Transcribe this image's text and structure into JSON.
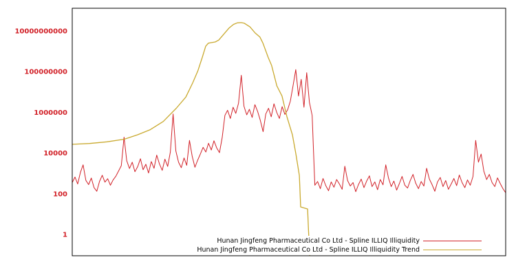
{
  "chart_data": {
    "type": "line",
    "title": "",
    "grid": false,
    "background": "#ffffff",
    "plot_border_color": "#000000",
    "x_axis": {
      "tick_labels_visible": false
    },
    "y_axis": {
      "scale": "log10",
      "tick_values": [
        1,
        100,
        10000,
        1000000,
        100000000,
        10000000000
      ],
      "tick_labels": [
        "1",
        "100",
        "10000",
        "1000000",
        "100000000",
        "10000000000"
      ],
      "tick_color": "#d11f26",
      "range_log10": [
        -1.05,
        11.12
      ]
    },
    "legend": {
      "position": "bottom-center"
    },
    "series": [
      {
        "name": "Hunan Jingfeng Pharmaceutical Co Ltd - Spline ILLIQ Illiquidity",
        "color": "#d11f26",
        "sampling": "uniform_x_0_to_1",
        "values_log10": [
          2.55,
          2.82,
          2.48,
          3.05,
          3.42,
          2.66,
          2.45,
          2.77,
          2.3,
          2.12,
          2.6,
          2.91,
          2.57,
          2.74,
          2.42,
          2.68,
          2.86,
          3.12,
          3.38,
          4.78,
          3.62,
          3.24,
          3.55,
          3.08,
          3.33,
          3.72,
          3.18,
          3.45,
          3.02,
          3.58,
          3.25,
          3.9,
          3.46,
          3.15,
          3.7,
          3.34,
          4.05,
          5.92,
          4.1,
          3.55,
          3.28,
          3.76,
          3.4,
          4.62,
          3.85,
          3.3,
          3.65,
          3.95,
          4.28,
          4.05,
          4.48,
          4.15,
          4.6,
          4.25,
          4.02,
          4.75,
          5.85,
          6.1,
          5.7,
          6.25,
          5.95,
          6.45,
          7.82,
          6.3,
          5.88,
          6.15,
          5.75,
          6.38,
          6.05,
          5.6,
          5.05,
          5.92,
          6.2,
          5.78,
          6.42,
          6.0,
          5.7,
          6.28,
          5.9,
          6.12,
          6.55,
          7.3,
          8.1,
          6.8,
          7.62,
          6.25,
          7.95,
          6.5,
          5.85,
          2.42,
          2.6,
          2.25,
          2.75,
          2.4,
          2.15,
          2.58,
          2.32,
          2.7,
          2.48,
          2.22,
          3.35,
          2.65,
          2.38,
          2.55,
          2.1,
          2.45,
          2.72,
          2.3,
          2.62,
          2.88,
          2.35,
          2.58,
          2.2,
          2.7,
          2.44,
          3.42,
          2.78,
          2.35,
          2.62,
          2.18,
          2.5,
          2.85,
          2.42,
          2.28,
          2.65,
          2.95,
          2.52,
          2.25,
          2.6,
          2.38,
          3.25,
          2.72,
          2.45,
          2.12,
          2.58,
          2.8,
          2.35,
          2.65,
          2.22,
          2.48,
          2.75,
          2.4,
          2.92,
          2.55,
          2.3,
          2.68,
          2.42,
          2.85,
          4.62,
          3.55,
          3.95,
          3.1,
          2.7,
          2.95,
          2.55,
          2.35,
          2.78,
          2.5,
          2.25,
          2.05
        ]
      },
      {
        "name": "Hunan Jingfeng Pharmaceutical Co Ltd - Spline ILLIQ Illiquidity Trend",
        "color": "#c9a92e",
        "points_log10": [
          [
            0.0,
            4.43
          ],
          [
            0.04,
            4.47
          ],
          [
            0.08,
            4.55
          ],
          [
            0.12,
            4.68
          ],
          [
            0.151,
            4.9
          ],
          [
            0.18,
            5.15
          ],
          [
            0.21,
            5.55
          ],
          [
            0.24,
            6.2
          ],
          [
            0.262,
            6.75
          ],
          [
            0.278,
            7.45
          ],
          [
            0.29,
            8.05
          ],
          [
            0.3,
            8.7
          ],
          [
            0.308,
            9.25
          ],
          [
            0.314,
            9.4
          ],
          [
            0.322,
            9.43
          ],
          [
            0.33,
            9.46
          ],
          [
            0.338,
            9.55
          ],
          [
            0.35,
            9.85
          ],
          [
            0.362,
            10.15
          ],
          [
            0.372,
            10.32
          ],
          [
            0.381,
            10.4
          ],
          [
            0.39,
            10.41
          ],
          [
            0.397,
            10.38
          ],
          [
            0.41,
            10.2
          ],
          [
            0.422,
            9.9
          ],
          [
            0.433,
            9.7
          ],
          [
            0.44,
            9.4
          ],
          [
            0.452,
            8.7
          ],
          [
            0.46,
            8.3
          ],
          [
            0.472,
            7.3
          ],
          [
            0.484,
            6.8
          ],
          [
            0.495,
            5.8
          ],
          [
            0.508,
            4.9
          ],
          [
            0.516,
            3.95
          ],
          [
            0.524,
            2.9
          ],
          [
            0.527,
            1.35
          ],
          [
            0.535,
            1.3
          ],
          [
            0.543,
            1.25
          ],
          [
            0.545,
            0.2
          ],
          [
            0.548,
            -1.05
          ]
        ]
      }
    ]
  }
}
